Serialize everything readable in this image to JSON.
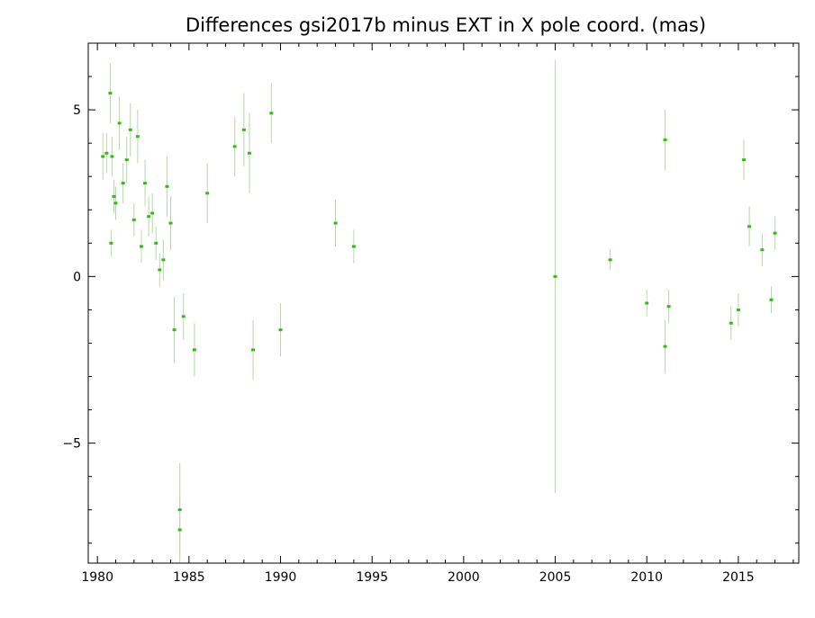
{
  "chart_data": {
    "type": "scatter",
    "title": "Differences gsi2017b minus EXT in X pole coord. (mas)",
    "xlabel": "",
    "ylabel": "",
    "xlim": [
      1979.5,
      2018.3
    ],
    "ylim": [
      -8.6,
      7.0
    ],
    "x_ticks": [
      1980,
      1985,
      1990,
      1995,
      2000,
      2005,
      2010,
      2015
    ],
    "y_ticks": [
      -5,
      0,
      5
    ],
    "grid": false,
    "legend": "none",
    "colors": {
      "points": "#3cb521",
      "errorbars": "#b9d6ad",
      "axes": "#000000"
    },
    "series": [
      {
        "points": [
          [
            1980.3,
            3.6,
            0.7
          ],
          [
            1980.5,
            3.7,
            0.6
          ],
          [
            1980.7,
            5.5,
            0.9
          ],
          [
            1980.8,
            3.6,
            0.6
          ],
          [
            1980.9,
            2.4,
            0.5
          ],
          [
            1981.0,
            2.2,
            0.5
          ],
          [
            1980.75,
            1.0,
            0.4
          ],
          [
            1981.2,
            4.6,
            0.8
          ],
          [
            1981.4,
            2.8,
            0.6
          ],
          [
            1981.6,
            3.5,
            0.7
          ],
          [
            1981.8,
            4.4,
            0.8
          ],
          [
            1982.0,
            1.7,
            0.5
          ],
          [
            1982.2,
            4.2,
            0.8
          ],
          [
            1982.4,
            0.9,
            0.5
          ],
          [
            1982.6,
            2.8,
            0.7
          ],
          [
            1982.8,
            1.8,
            0.6
          ],
          [
            1983.0,
            1.9,
            0.6
          ],
          [
            1983.2,
            1.0,
            0.5
          ],
          [
            1983.4,
            0.2,
            0.5
          ],
          [
            1983.6,
            0.5,
            0.6
          ],
          [
            1983.8,
            2.7,
            0.9
          ],
          [
            1984.0,
            1.6,
            0.8
          ],
          [
            1984.2,
            -1.6,
            1.0
          ],
          [
            1984.5,
            -7.0,
            1.4
          ],
          [
            1984.5,
            -7.6,
            1.0
          ],
          [
            1984.7,
            -1.2,
            0.7
          ],
          [
            1985.3,
            -2.2,
            0.8
          ],
          [
            1986.0,
            2.5,
            0.9
          ],
          [
            1987.5,
            3.9,
            0.9
          ],
          [
            1988.0,
            4.4,
            1.1
          ],
          [
            1988.3,
            3.7,
            1.2
          ],
          [
            1988.5,
            -2.2,
            0.9
          ],
          [
            1989.5,
            4.9,
            0.9
          ],
          [
            1990.0,
            -1.6,
            0.8
          ],
          [
            1993.0,
            1.6,
            0.7
          ],
          [
            1994.0,
            0.9,
            0.5
          ],
          [
            2011.0,
            4.1,
            0.9
          ],
          [
            2011.0,
            -2.1,
            0.8
          ],
          [
            2011.2,
            -0.9,
            0.5
          ],
          [
            2015.3,
            3.5,
            0.6
          ],
          [
            2015.0,
            -1.0,
            0.5
          ],
          [
            2015.6,
            1.5,
            0.6
          ],
          [
            2016.3,
            0.8,
            0.5
          ],
          [
            2017.0,
            1.3,
            0.5
          ],
          [
            2016.8,
            -0.7,
            0.4
          ],
          [
            2014.6,
            -1.4,
            0.5
          ],
          [
            2010.0,
            -0.8,
            0.4
          ],
          [
            2008.0,
            0.5,
            0.3
          ],
          [
            2005.0,
            0.0,
            6.5
          ]
        ]
      }
    ]
  }
}
